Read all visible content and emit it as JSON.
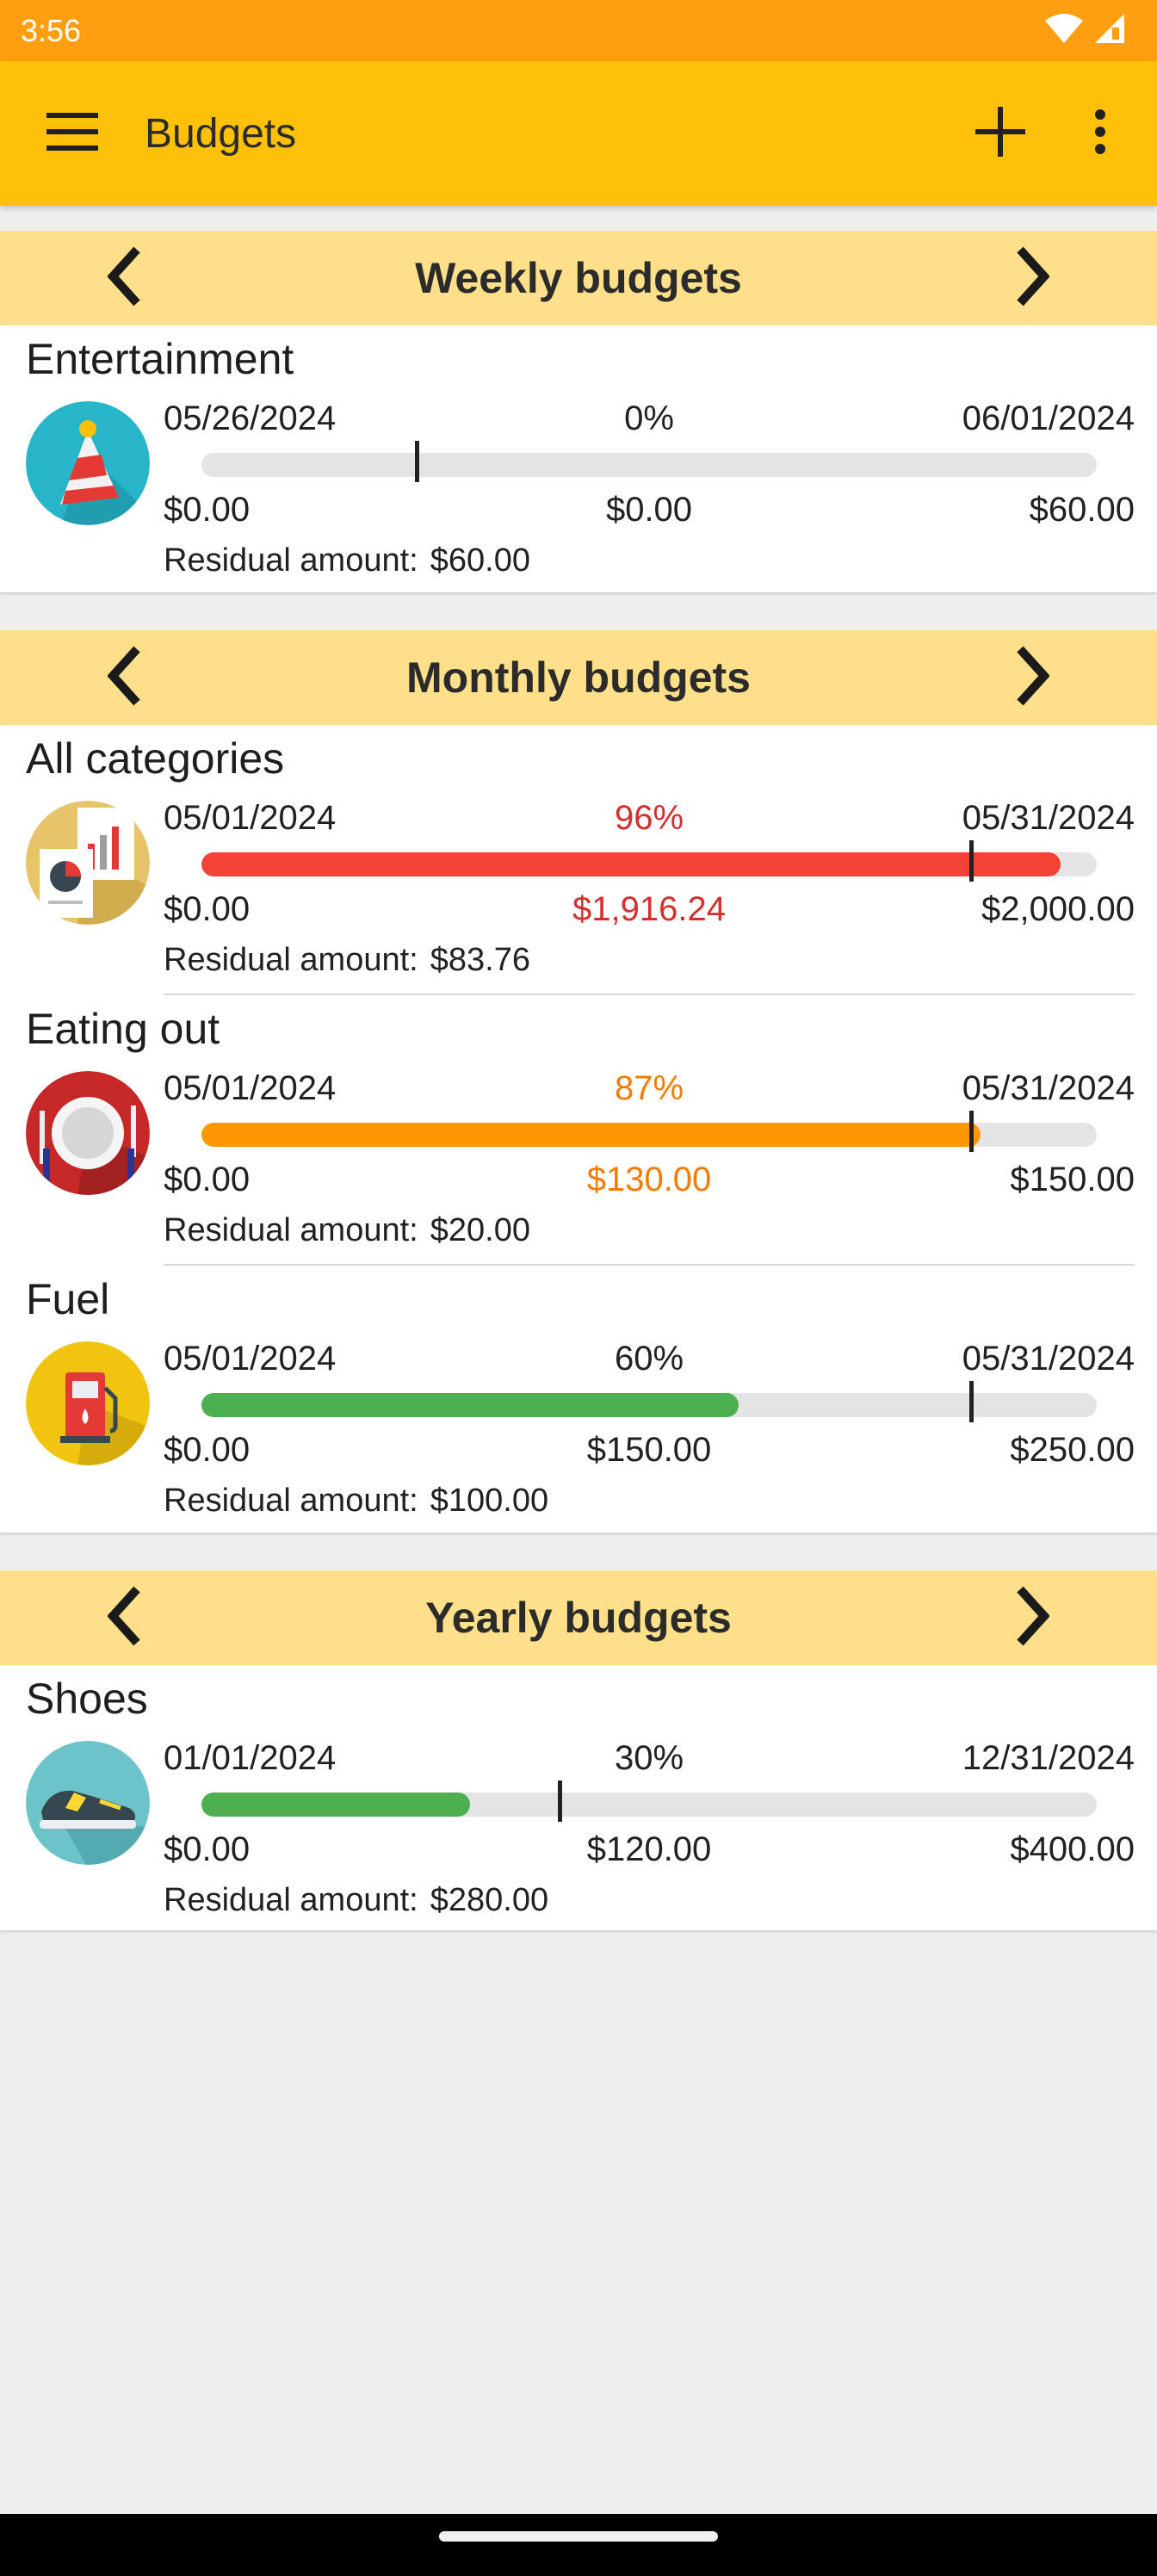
{
  "status_bar": {
    "time": "3:56"
  },
  "app_bar": {
    "title": "Budgets",
    "icons": [
      "menu-icon",
      "add-icon",
      "more-vert-icon"
    ]
  },
  "colors": {
    "over": "#f44336",
    "warning": "#ff9800",
    "ok": "#4caf50",
    "over_text": "#d32f2f",
    "warning_text": "#f57c00"
  },
  "sections": [
    {
      "title": "Weekly budgets",
      "items": [
        {
          "name": "Entertainment",
          "icon": "party-hat-icon",
          "date_start": "05/26/2024",
          "date_end": "06/01/2024",
          "percent": "0%",
          "progress": 0,
          "time_marker": 0.24,
          "min": "$0.00",
          "spent": "$0.00",
          "max": "$60.00",
          "residual_label": "Residual amount:",
          "residual": "$60.00",
          "state": "normal"
        }
      ]
    },
    {
      "title": "Monthly budgets",
      "items": [
        {
          "name": "All categories",
          "icon": "reports-icon",
          "date_start": "05/01/2024",
          "date_end": "05/31/2024",
          "percent": "96%",
          "progress": 0.96,
          "time_marker": 0.86,
          "min": "$0.00",
          "spent": "$1,916.24",
          "max": "$2,000.00",
          "residual_label": "Residual amount:",
          "residual": "$83.76",
          "state": "over"
        },
        {
          "name": "Eating out",
          "icon": "dining-plate-icon",
          "date_start": "05/01/2024",
          "date_end": "05/31/2024",
          "percent": "87%",
          "progress": 0.87,
          "time_marker": 0.86,
          "min": "$0.00",
          "spent": "$130.00",
          "max": "$150.00",
          "residual_label": "Residual amount:",
          "residual": "$20.00",
          "state": "warning"
        },
        {
          "name": "Fuel",
          "icon": "fuel-pump-icon",
          "date_start": "05/01/2024",
          "date_end": "05/31/2024",
          "percent": "60%",
          "progress": 0.6,
          "time_marker": 0.86,
          "min": "$0.00",
          "spent": "$150.00",
          "max": "$250.00",
          "residual_label": "Residual amount:",
          "residual": "$100.00",
          "state": "ok"
        }
      ]
    },
    {
      "title": "Yearly budgets",
      "items": [
        {
          "name": "Shoes",
          "icon": "sneaker-icon",
          "date_start": "01/01/2024",
          "date_end": "12/31/2024",
          "percent": "30%",
          "progress": 0.3,
          "time_marker": 0.4,
          "min": "$0.00",
          "spent": "$120.00",
          "max": "$400.00",
          "residual_label": "Residual amount:",
          "residual": "$280.00",
          "state": "ok"
        }
      ]
    }
  ]
}
